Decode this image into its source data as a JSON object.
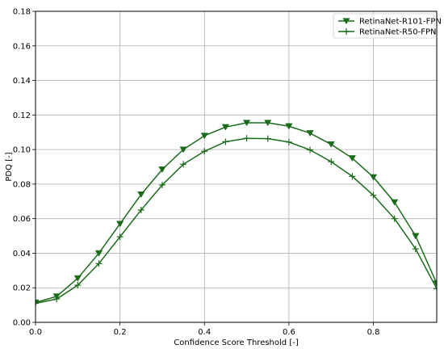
{
  "chart_data": {
    "type": "line",
    "xlabel": "Confidence Score Threshold [-]",
    "ylabel": "PDQ [-]",
    "xlim": [
      0.0,
      0.95
    ],
    "ylim": [
      0.0,
      0.18
    ],
    "xticks": [
      0.0,
      0.2,
      0.4,
      0.6,
      0.8
    ],
    "xtick_labels": [
      "0.0",
      "0.2",
      "0.4",
      "0.6",
      "0.8"
    ],
    "yticks": [
      0.0,
      0.02,
      0.04,
      0.06,
      0.08,
      0.1,
      0.12,
      0.14,
      0.16,
      0.18
    ],
    "ytick_labels": [
      "0.00",
      "0.02",
      "0.04",
      "0.06",
      "0.08",
      "0.10",
      "0.12",
      "0.14",
      "0.16",
      "0.18"
    ],
    "grid": true,
    "legend_position": "top-right",
    "x": [
      0.0,
      0.05,
      0.1,
      0.15,
      0.2,
      0.25,
      0.3,
      0.35,
      0.4,
      0.45,
      0.5,
      0.55,
      0.6,
      0.65,
      0.7,
      0.75,
      0.8,
      0.85,
      0.9,
      0.95
    ],
    "series": [
      {
        "name": "RetinaNet-R101-FPN",
        "marker": "triangle-down",
        "color": "#1a6b1a",
        "values": [
          0.0115,
          0.015,
          0.0255,
          0.04,
          0.057,
          0.074,
          0.0885,
          0.1,
          0.108,
          0.113,
          0.1155,
          0.1155,
          0.1135,
          0.1095,
          0.103,
          0.095,
          0.084,
          0.0695,
          0.05,
          0.0225
        ]
      },
      {
        "name": "RetinaNet-R50-FPN",
        "marker": "plus",
        "color": "#1a6b1a",
        "values": [
          0.011,
          0.0135,
          0.0215,
          0.034,
          0.0495,
          0.065,
          0.0795,
          0.0915,
          0.099,
          0.1045,
          0.1065,
          0.1063,
          0.1043,
          0.0998,
          0.093,
          0.0845,
          0.0735,
          0.06,
          0.0425,
          0.0195
        ]
      }
    ]
  }
}
